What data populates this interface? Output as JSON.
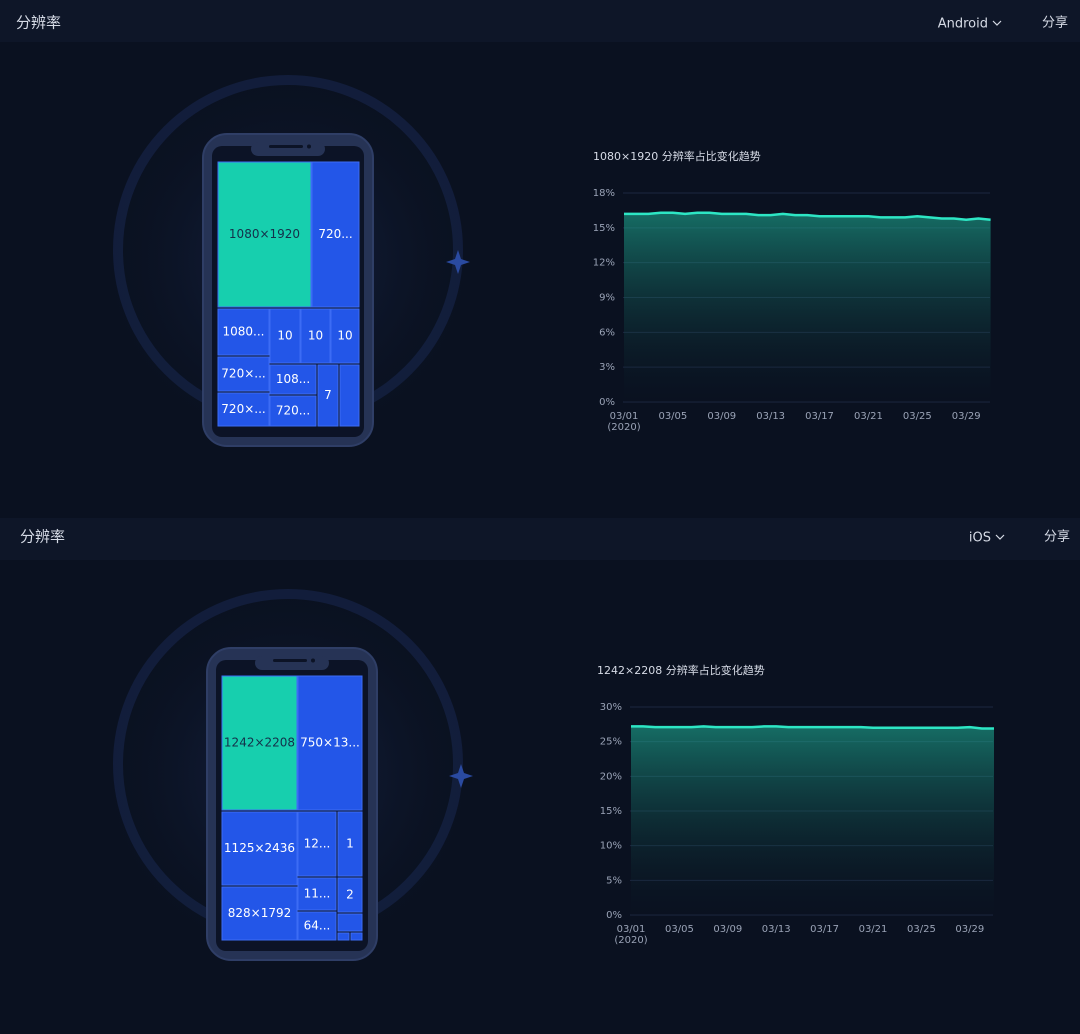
{
  "panels": [
    {
      "title": "分辨率",
      "platform": "Android",
      "share": "分享",
      "treemap": [
        "1080×1920",
        "720...",
        "1080...",
        "10",
        "10",
        "10",
        "720×...",
        "720×...",
        "108...",
        "720...",
        "7"
      ],
      "chart": {
        "type": "area",
        "title": "1080×1920 分辨率占比变化趋势",
        "color": "#2de6c4",
        "categories": [
          "03/01",
          null,
          null,
          null,
          "03/05",
          null,
          null,
          null,
          "03/09",
          null,
          null,
          null,
          "03/13",
          null,
          null,
          null,
          "03/17",
          null,
          null,
          null,
          "03/21",
          null,
          null,
          null,
          "03/25",
          null,
          null,
          null,
          "03/29",
          null,
          null
        ],
        "x_year": "(2020)",
        "values": [
          16.2,
          16.2,
          16.2,
          16.3,
          16.3,
          16.2,
          16.3,
          16.3,
          16.2,
          16.2,
          16.2,
          16.1,
          16.1,
          16.2,
          16.1,
          16.1,
          16.0,
          16.0,
          16.0,
          16.0,
          16.0,
          15.9,
          15.9,
          15.9,
          16.0,
          15.9,
          15.8,
          15.8,
          15.7,
          15.8,
          15.7
        ],
        "ylim": [
          0,
          18
        ],
        "yticks": [
          {
            "value": 0,
            "label": "0%"
          },
          {
            "value": 3,
            "label": "3%"
          },
          {
            "value": 6,
            "label": "6%"
          },
          {
            "value": 9,
            "label": "9%"
          },
          {
            "value": 12,
            "label": "12%"
          },
          {
            "value": 15,
            "label": "15%"
          },
          {
            "value": 18,
            "label": "18%"
          }
        ]
      }
    },
    {
      "title": "分辨率",
      "platform": "iOS",
      "share": "分享",
      "treemap": [
        "1242×2208",
        "750×13...",
        "1125×2436",
        "12...",
        "1",
        "828×1792",
        "11...",
        "2",
        "64..."
      ],
      "chart": {
        "type": "area",
        "title": "1242×2208 分辨率占比变化趋势",
        "color": "#2de6c4",
        "categories": [
          "03/01",
          null,
          null,
          null,
          "03/05",
          null,
          null,
          null,
          "03/09",
          null,
          null,
          null,
          "03/13",
          null,
          null,
          null,
          "03/17",
          null,
          null,
          null,
          "03/21",
          null,
          null,
          null,
          "03/25",
          null,
          null,
          null,
          "03/29",
          null,
          null
        ],
        "x_year": "(2020)",
        "values": [
          27.2,
          27.2,
          27.1,
          27.1,
          27.1,
          27.1,
          27.2,
          27.1,
          27.1,
          27.1,
          27.1,
          27.2,
          27.2,
          27.1,
          27.1,
          27.1,
          27.1,
          27.1,
          27.1,
          27.1,
          27.0,
          27.0,
          27.0,
          27.0,
          27.0,
          27.0,
          27.0,
          27.0,
          27.1,
          26.9,
          26.9
        ],
        "ylim": [
          0,
          30
        ],
        "yticks": [
          {
            "value": 0,
            "label": "0%"
          },
          {
            "value": 5,
            "label": "5%"
          },
          {
            "value": 10,
            "label": "10%"
          },
          {
            "value": 15,
            "label": "15%"
          },
          {
            "value": 20,
            "label": "20%"
          },
          {
            "value": 25,
            "label": "25%"
          },
          {
            "value": 30,
            "label": "30%"
          }
        ]
      }
    }
  ]
}
